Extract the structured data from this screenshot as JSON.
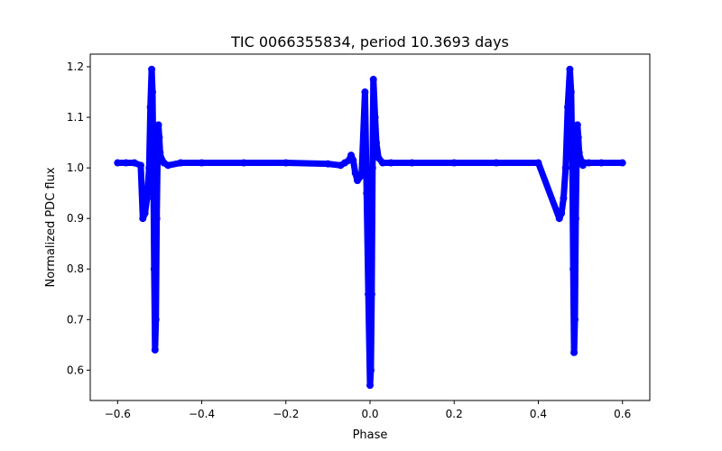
{
  "chart_data": {
    "type": "scatter",
    "title": "TIC 0066355834, period 10.3693 days",
    "xlabel": "Phase",
    "ylabel": "Normalized PDC flux",
    "xlim": [
      -0.665,
      0.665
    ],
    "ylim": [
      0.54,
      1.225
    ],
    "xticks": [
      -0.6,
      -0.4,
      -0.2,
      0.0,
      0.2,
      0.4,
      0.6
    ],
    "xtick_labels": [
      "−0.6",
      "−0.4",
      "−0.2",
      "0.0",
      "0.2",
      "0.4",
      "0.6"
    ],
    "yticks": [
      0.6,
      0.7,
      0.8,
      0.9,
      1.0,
      1.1,
      1.2
    ],
    "ytick_labels": [
      "0.6",
      "0.7",
      "0.8",
      "0.9",
      "1.0",
      "1.1",
      "1.2"
    ],
    "grid": false,
    "legend": "none",
    "marker_color": "#0000ff",
    "series": [
      {
        "x": [
          -0.6,
          -0.58,
          -0.56,
          -0.545,
          -0.54,
          -0.535,
          -0.53,
          -0.525,
          -0.522,
          -0.519,
          -0.517,
          -0.515,
          -0.513,
          -0.511,
          -0.509,
          -0.507,
          -0.505,
          -0.503,
          -0.501,
          -0.499,
          -0.497,
          -0.494,
          -0.49,
          -0.48,
          -0.45,
          -0.4,
          -0.3,
          -0.2,
          -0.1,
          -0.07,
          -0.06,
          -0.05,
          -0.045,
          -0.04,
          -0.035,
          -0.03,
          -0.02,
          -0.012,
          -0.008,
          -0.004,
          0.0,
          0.002,
          0.004,
          0.006,
          0.008,
          0.012,
          0.015,
          0.02,
          0.03,
          0.05,
          0.1,
          0.2,
          0.3,
          0.4,
          0.45,
          0.455,
          0.46,
          0.465,
          0.47,
          0.475,
          0.478,
          0.481,
          0.483,
          0.485,
          0.487,
          0.489,
          0.491,
          0.493,
          0.495,
          0.497,
          0.499,
          0.501,
          0.503,
          0.506,
          0.51,
          0.52,
          0.55,
          0.6
        ],
        "y": [
          1.01,
          1.01,
          1.01,
          1.005,
          0.9,
          0.91,
          0.94,
          1.0,
          1.12,
          1.195,
          1.15,
          1.0,
          0.8,
          0.64,
          0.7,
          0.9,
          1.02,
          1.085,
          1.06,
          1.03,
          1.02,
          1.015,
          1.01,
          1.005,
          1.01,
          1.01,
          1.01,
          1.01,
          1.008,
          1.005,
          1.01,
          1.015,
          1.025,
          1.015,
          0.99,
          0.975,
          0.985,
          1.15,
          0.95,
          0.75,
          0.57,
          0.6,
          0.75,
          1.0,
          1.175,
          1.1,
          1.05,
          1.02,
          1.01,
          1.01,
          1.01,
          1.01,
          1.01,
          1.01,
          0.9,
          0.91,
          0.94,
          1.0,
          1.12,
          1.195,
          1.15,
          1.0,
          0.8,
          0.635,
          0.7,
          0.9,
          1.02,
          1.085,
          1.06,
          1.03,
          1.02,
          1.015,
          1.01,
          1.005,
          1.01,
          1.01,
          1.01,
          1.01
        ]
      }
    ]
  }
}
